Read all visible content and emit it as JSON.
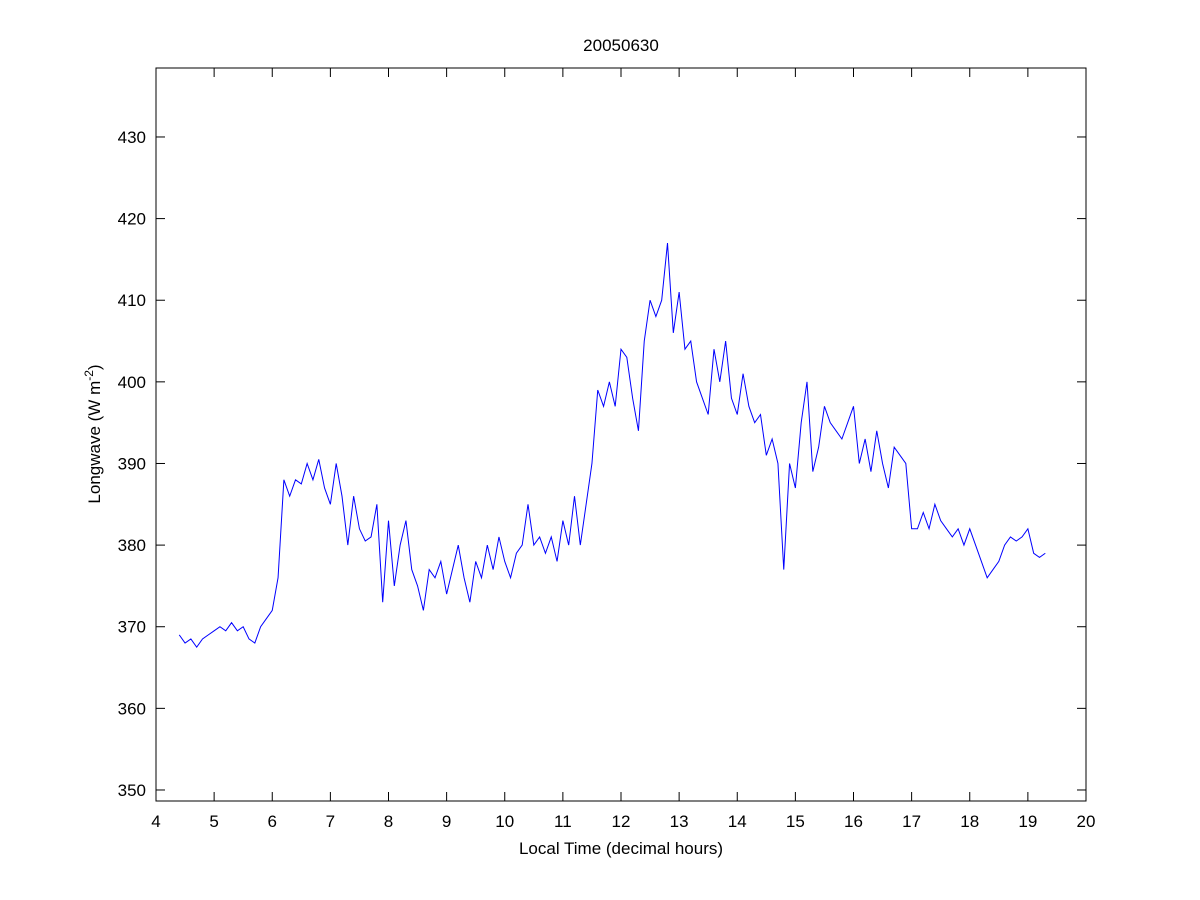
{
  "chart_data": {
    "type": "line",
    "title": "20050630",
    "xlabel": "Local Time (decimal hours)",
    "ylabel_parts": [
      "Longwave (W m",
      "-2",
      ")"
    ],
    "x": [
      4.4,
      4.5,
      4.6,
      4.7,
      4.8,
      4.9,
      5.0,
      5.1,
      5.2,
      5.3,
      5.4,
      5.5,
      5.6,
      5.7,
      5.8,
      5.9,
      6.0,
      6.1,
      6.2,
      6.3,
      6.4,
      6.5,
      6.6,
      6.7,
      6.8,
      6.9,
      7.0,
      7.1,
      7.2,
      7.3,
      7.4,
      7.5,
      7.6,
      7.7,
      7.8,
      7.9,
      8.0,
      8.1,
      8.2,
      8.3,
      8.4,
      8.5,
      8.6,
      8.7,
      8.8,
      8.9,
      9.0,
      9.1,
      9.2,
      9.3,
      9.4,
      9.5,
      9.6,
      9.7,
      9.8,
      9.9,
      10.0,
      10.1,
      10.2,
      10.3,
      10.4,
      10.5,
      10.6,
      10.7,
      10.8,
      10.9,
      11.0,
      11.1,
      11.2,
      11.3,
      11.4,
      11.5,
      11.6,
      11.7,
      11.8,
      11.9,
      12.0,
      12.1,
      12.2,
      12.3,
      12.4,
      12.5,
      12.6,
      12.7,
      12.8,
      12.9,
      13.0,
      13.1,
      13.2,
      13.3,
      13.4,
      13.5,
      13.6,
      13.7,
      13.8,
      13.9,
      14.0,
      14.1,
      14.2,
      14.3,
      14.4,
      14.5,
      14.6,
      14.7,
      14.8,
      14.9,
      15.0,
      15.1,
      15.2,
      15.3,
      15.4,
      15.5,
      15.6,
      15.7,
      15.8,
      15.9,
      16.0,
      16.1,
      16.2,
      16.3,
      16.4,
      16.5,
      16.6,
      16.7,
      16.8,
      16.9,
      17.0,
      17.1,
      17.2,
      17.3,
      17.4,
      17.5,
      17.6,
      17.7,
      17.8,
      17.9,
      18.0,
      18.1,
      18.2,
      18.3,
      18.4,
      18.5,
      18.6,
      18.7,
      18.8,
      18.9,
      19.0,
      19.1,
      19.2,
      19.3
    ],
    "series": [
      {
        "color": "#0000ff",
        "values": [
          369,
          368,
          368.5,
          367.5,
          368.5,
          369,
          369.5,
          370,
          369.5,
          370.5,
          369.5,
          370,
          368.5,
          368,
          370,
          371,
          372,
          376,
          388,
          386,
          388,
          387.5,
          390,
          388,
          390.5,
          387,
          385,
          390,
          386,
          380,
          386,
          382,
          380.5,
          381,
          385,
          373,
          383,
          375,
          380,
          383,
          377,
          375,
          372,
          377,
          376,
          378,
          374,
          377,
          380,
          376,
          373,
          378,
          376,
          380,
          377,
          381,
          378,
          376,
          379,
          380,
          385,
          380,
          381,
          379,
          381,
          378,
          383,
          380,
          386,
          380,
          385,
          390,
          399,
          397,
          400,
          397,
          404,
          403,
          398,
          394,
          405,
          410,
          408,
          410,
          417,
          406,
          411,
          404,
          405,
          400,
          398,
          396,
          404,
          400,
          405,
          398,
          396,
          401,
          397,
          395,
          396,
          391,
          393,
          390,
          377,
          390,
          387,
          395,
          400,
          389,
          392,
          397,
          395,
          394,
          393,
          395,
          397,
          390,
          393,
          389,
          394,
          390,
          387,
          392,
          391,
          390,
          382,
          382,
          384,
          382,
          385,
          383,
          382,
          381,
          382,
          380,
          382,
          380,
          378,
          376,
          377,
          378,
          380,
          381,
          380.5,
          381,
          382,
          379,
          378.5,
          379
        ]
      }
    ],
    "xlim": [
      4,
      20
    ],
    "xticks": [
      4,
      5,
      6,
      7,
      8,
      9,
      10,
      11,
      12,
      13,
      14,
      15,
      16,
      17,
      18,
      19,
      20
    ],
    "ylim": [
      348.65,
      438.45
    ],
    "yticks": [
      350,
      360,
      370,
      380,
      390,
      400,
      410,
      420,
      430
    ],
    "grid": false
  }
}
